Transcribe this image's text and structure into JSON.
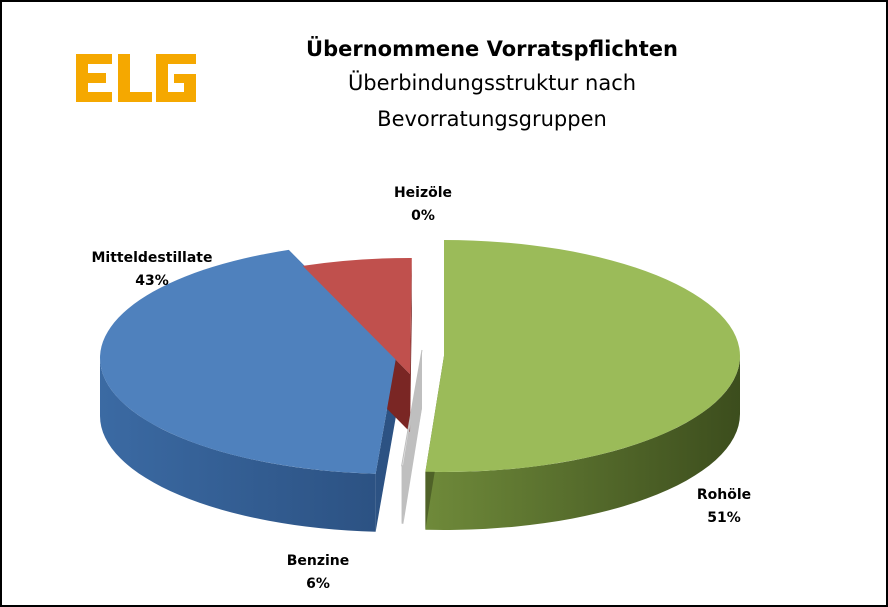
{
  "chart_data": {
    "type": "pie",
    "title": "Übernommene Vorratspflichten",
    "subtitle": "Überbindungsstruktur nach Bevorratungsgruppen",
    "series": [
      {
        "name": "Rohöle",
        "value": 51,
        "label": "51%",
        "color": "#9bbb59",
        "dark": "#4f6228"
      },
      {
        "name": "Heizöle",
        "value": 0,
        "label": "0%",
        "color": "#e6e6e6",
        "dark": "#bfbfbf"
      },
      {
        "name": "Mitteldestillate",
        "value": 43,
        "label": "43%",
        "color": "#4f81bd",
        "dark": "#2c5283"
      },
      {
        "name": "Benzine",
        "value": 6,
        "label": "6%",
        "color": "#c0504d",
        "dark": "#7a2624"
      }
    ],
    "legend": "none"
  },
  "logo": {
    "text": "ELG",
    "color": "#f5a800"
  }
}
